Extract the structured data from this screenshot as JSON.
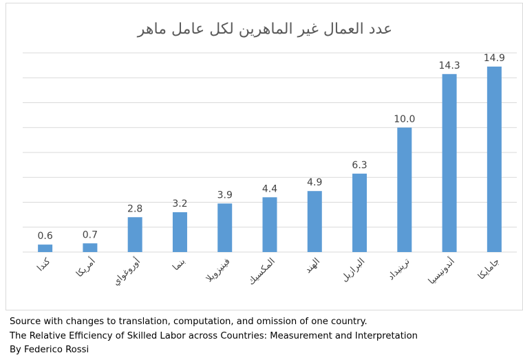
{
  "chart_data": {
    "type": "bar",
    "title": "عدد العمال غير الماهرين لكل عامل ماهر",
    "categories": [
      "كندا",
      "أمريكا",
      "أوروغواي",
      "بنما",
      "فينيزويلا",
      "المكسيك",
      "الهند",
      "البرازيل",
      "ترينيداد",
      "أندونيسيا",
      "جامايكا"
    ],
    "values": [
      0.6,
      0.7,
      2.8,
      3.2,
      3.9,
      4.4,
      4.9,
      6.3,
      10.0,
      14.3,
      14.9
    ],
    "value_labels": [
      "0.6",
      "0.7",
      "2.8",
      "3.2",
      "3.9",
      "4.4",
      "4.9",
      "6.3",
      "10.0",
      "14.3",
      "14.9"
    ],
    "ylim": [
      0,
      16
    ],
    "y_gridlines": [
      2,
      4,
      6,
      8,
      10,
      12,
      14,
      16
    ],
    "grid": true,
    "legend": false,
    "bar_color": "#5b9bd5",
    "grid_color": "#d9d9d9"
  },
  "notes": {
    "line1": "Source with changes to translation, computation, and omission of one country.",
    "line2": "The Relative Efficiency of Skilled Labor across Countries: Measurement and Interpretation",
    "line3": "By Federico Rossi"
  }
}
